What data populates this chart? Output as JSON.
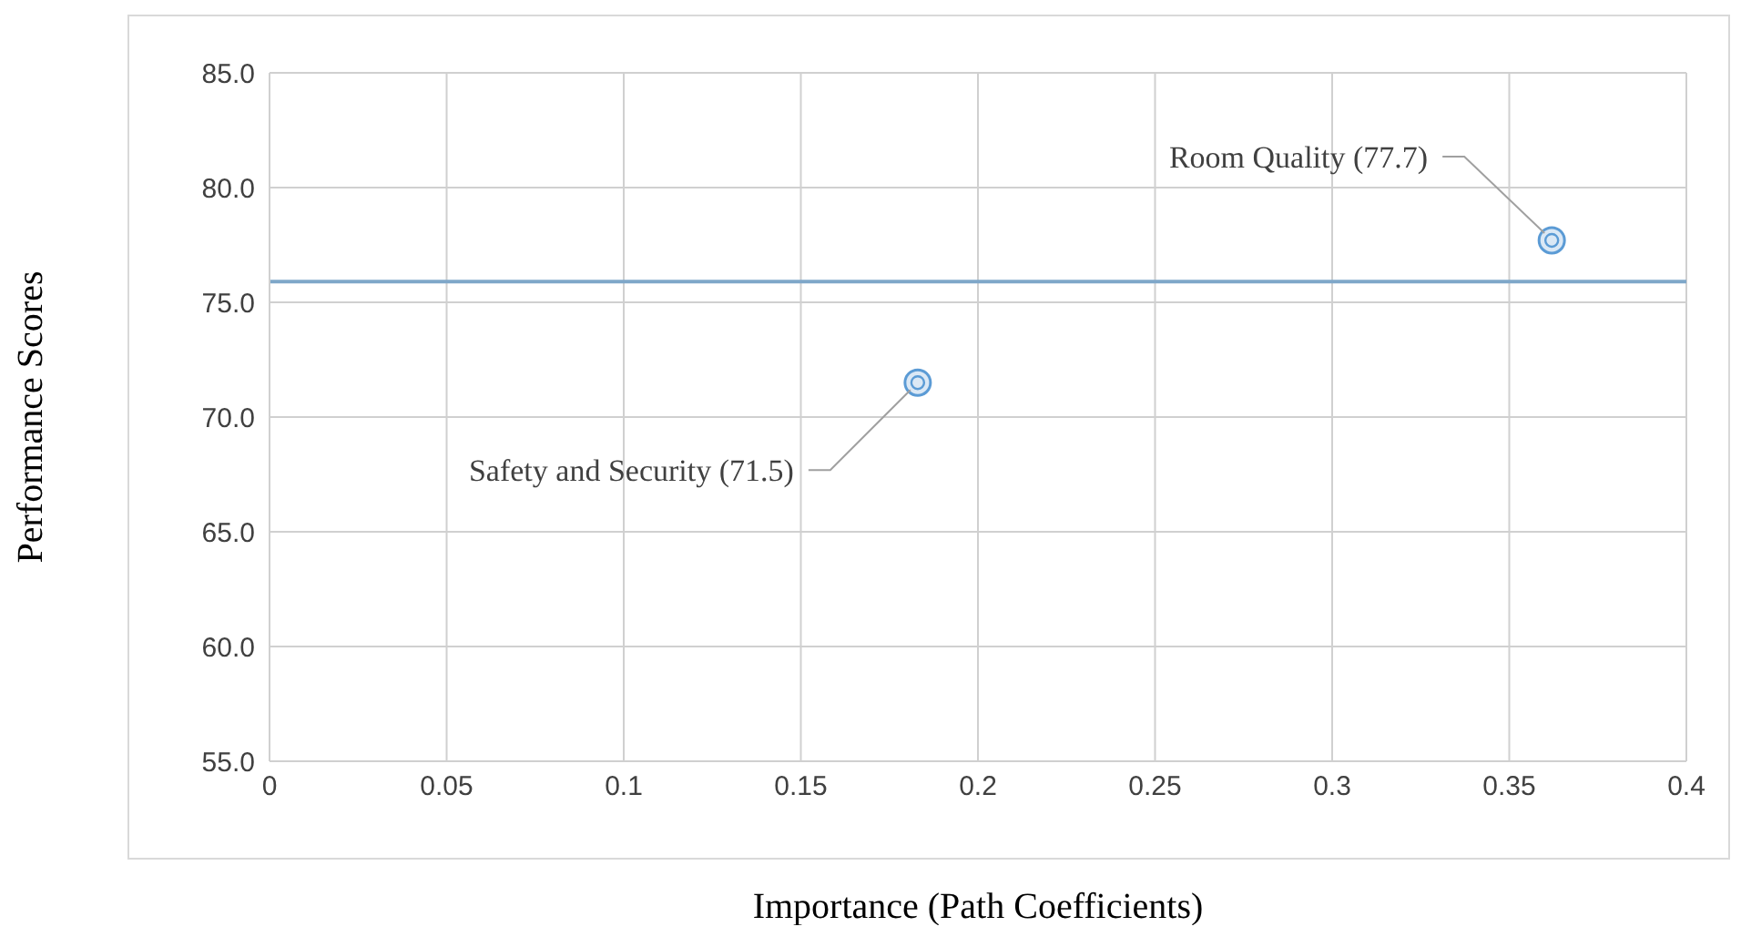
{
  "chart_data": {
    "type": "scatter",
    "xlabel": "Importance (Path Coefficients)",
    "ylabel": "Performance Scores",
    "x": [
      0.183,
      0.362
    ],
    "values": [
      71.5,
      77.7
    ],
    "color": "#5b9bd5",
    "marker": "circle",
    "xlim": [
      0,
      0.4
    ],
    "xticks": [
      0,
      0.05,
      0.1,
      0.15,
      0.2,
      0.25,
      0.3,
      0.35,
      0.4
    ],
    "ylim": [
      55,
      85
    ],
    "yticks": [
      {
        "value": 55,
        "label": "55.0"
      },
      {
        "value": 60,
        "label": "60.0"
      },
      {
        "value": 65,
        "label": "65.0"
      },
      {
        "value": 70,
        "label": "70.0"
      },
      {
        "value": 75,
        "label": "75.0"
      },
      {
        "value": 80,
        "label": "80.0"
      },
      {
        "value": 85,
        "label": "85.0"
      }
    ],
    "ref_lines": [
      {
        "axis": "y",
        "value": 75.9,
        "color": "#7fa7c9"
      }
    ],
    "annotations": [
      {
        "text": "Safety and Security (71.5)",
        "x": 0.183,
        "y": 71.5
      },
      {
        "text": "Room Quality (77.7)",
        "x": 0.362,
        "y": 77.7
      }
    ],
    "grid": true
  }
}
